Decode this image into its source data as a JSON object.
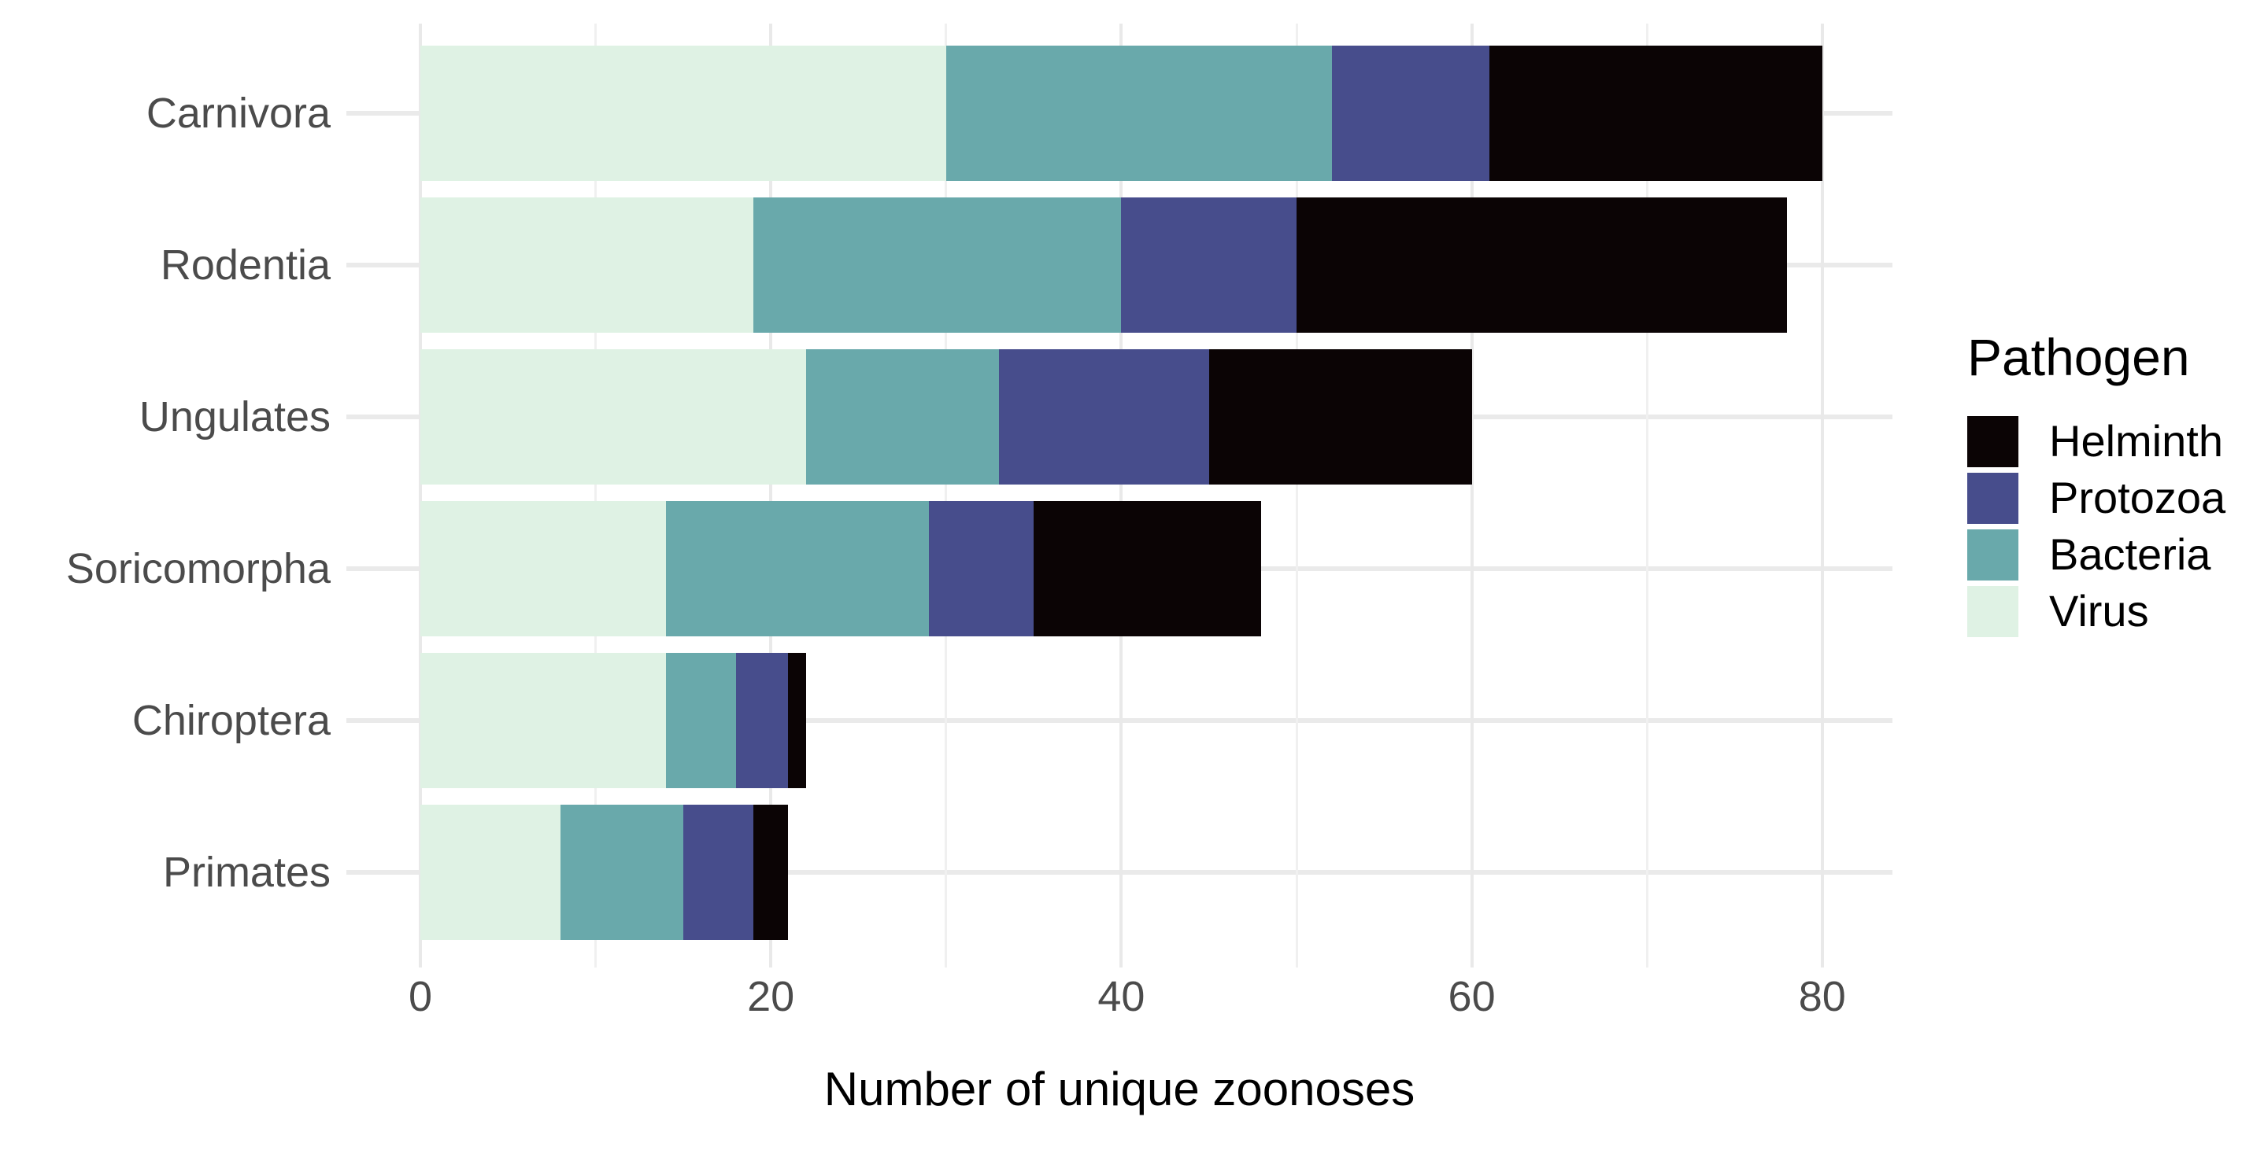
{
  "chart_data": {
    "type": "bar",
    "orientation": "horizontal",
    "stacked": true,
    "xlabel": "Number of unique zoonoses",
    "ylabel": "",
    "categories": [
      "Carnivora",
      "Rodentia",
      "Ungulates",
      "Soricomorpha",
      "Chiroptera",
      "Primates"
    ],
    "series": [
      {
        "name": "Virus",
        "color": "#dff2e4",
        "values": [
          30,
          19,
          22,
          14,
          14,
          8
        ]
      },
      {
        "name": "Bacteria",
        "color": "#69a9ab",
        "values": [
          22,
          21,
          11,
          15,
          4,
          7
        ]
      },
      {
        "name": "Protozoa",
        "color": "#474d8c",
        "values": [
          9,
          10,
          12,
          6,
          3,
          4
        ]
      },
      {
        "name": "Helminth",
        "color": "#0b0405",
        "values": [
          19,
          28,
          15,
          13,
          1,
          2
        ]
      }
    ],
    "totals": [
      80,
      78,
      60,
      48,
      22,
      21
    ],
    "xlim": [
      0,
      80
    ],
    "x_major_ticks": [
      0,
      20,
      40,
      60,
      80
    ],
    "x_minor_gridlines": [
      10,
      30,
      50,
      70
    ],
    "grid": true,
    "legend_position": "right"
  },
  "legend": {
    "title": "Pathogen",
    "items": [
      {
        "label": "Helminth",
        "color": "#0b0405"
      },
      {
        "label": "Protozoa",
        "color": "#474d8c"
      },
      {
        "label": "Bacteria",
        "color": "#69a9ab"
      },
      {
        "label": "Virus",
        "color": "#dff2e4"
      }
    ]
  },
  "axis": {
    "x_title": "Number of unique zoonoses"
  },
  "colors": {
    "background": "#ffffff",
    "gridline_major": "#e9e9e9",
    "gridline_minor": "#f0f0f0",
    "axis_text": "#4b4b4b",
    "axis_title": "#000000"
  }
}
